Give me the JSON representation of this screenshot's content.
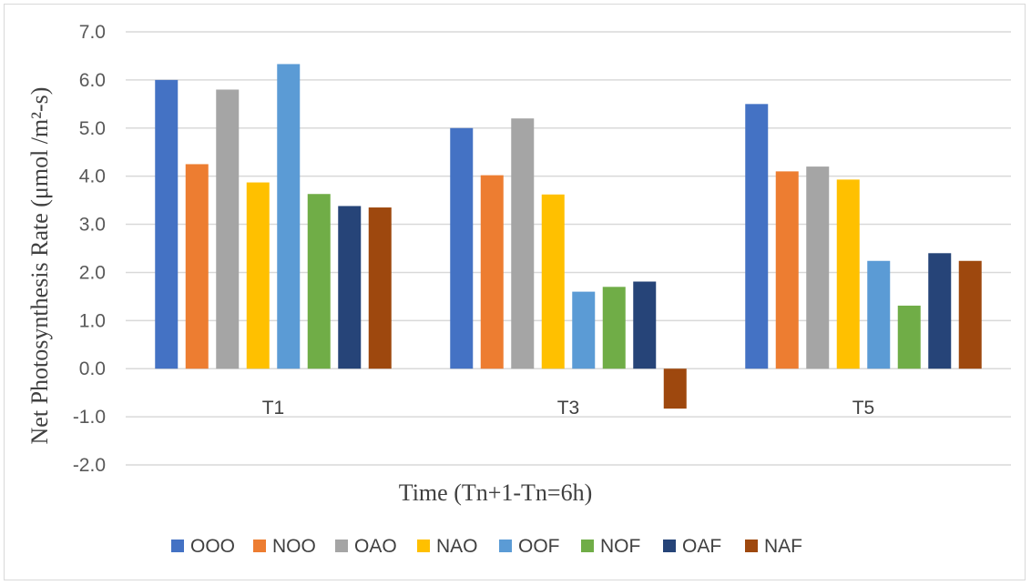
{
  "chart_data": {
    "type": "bar",
    "title": "",
    "xlabel": "Time (Tn+1-Tn=6h)",
    "ylabel": "Net Photosynthesis Rate (μmol /m²-s)",
    "categories": [
      "T1",
      "T3",
      "T5"
    ],
    "ylim": [
      -2.0,
      7.0
    ],
    "ytick_step": 1.0,
    "ytick_labels": [
      "-2.0",
      "-1.0",
      "0.0",
      "1.0",
      "2.0",
      "3.0",
      "4.0",
      "5.0",
      "6.0",
      "7.0"
    ],
    "grid": "horizontal",
    "legend_position": "bottom",
    "series": [
      {
        "name": "OOO",
        "color": "#4472C4",
        "values": [
          6.0,
          5.0,
          5.5
        ]
      },
      {
        "name": "NOO",
        "color": "#ED7D31",
        "values": [
          4.25,
          4.02,
          4.1
        ]
      },
      {
        "name": "OAO",
        "color": "#A5A5A5",
        "values": [
          5.8,
          5.2,
          4.2
        ]
      },
      {
        "name": "NAO",
        "color": "#FFC000",
        "values": [
          3.87,
          3.62,
          3.93
        ]
      },
      {
        "name": "OOF",
        "color": "#5B9BD5",
        "values": [
          6.33,
          1.6,
          2.24
        ]
      },
      {
        "name": "NOF",
        "color": "#70AD47",
        "values": [
          3.63,
          1.7,
          1.31
        ]
      },
      {
        "name": "OAF",
        "color": "#264478",
        "values": [
          3.38,
          1.81,
          2.4
        ]
      },
      {
        "name": "NAF",
        "color": "#9E480E",
        "values": [
          3.35,
          -0.83,
          2.24
        ]
      }
    ]
  }
}
